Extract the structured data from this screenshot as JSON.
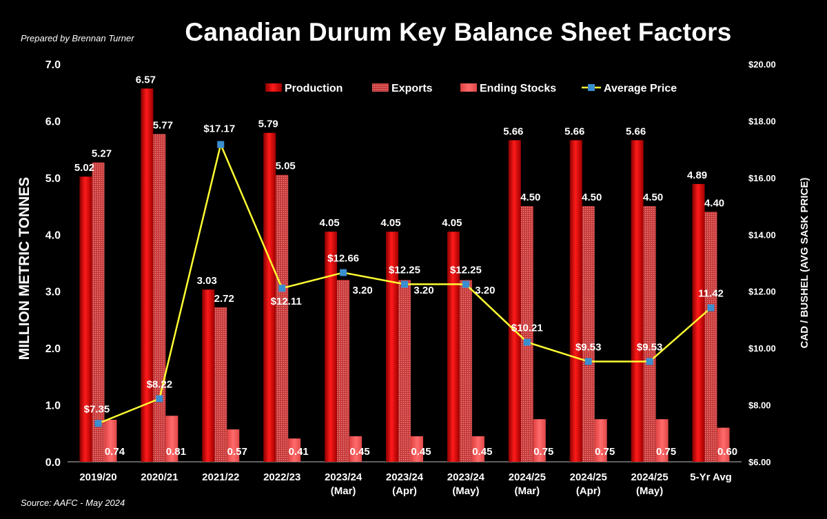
{
  "header": {
    "prepared_by": "Prepared by Brennan Turner",
    "title": "Canadian Durum Key Balance Sheet Factors",
    "source": "Source: AAFC - May 2024"
  },
  "colors": {
    "background": "#000000",
    "production": "#e60000",
    "exports": "#d94545",
    "ending_stocks": "#ff5a5a",
    "price_line": "#ffff33",
    "price_marker": "#3a8fd0"
  },
  "chart_data": {
    "type": "bar",
    "title": "Canadian Durum Key Balance Sheet Factors",
    "ylabel": "MILLION METRIC TONNES",
    "y2label": "CAD / BUSHEL (AVG SASK PRICE)",
    "ylim": [
      0,
      7
    ],
    "y2lim": [
      6,
      20
    ],
    "yticks": [
      "0.0",
      "1.0",
      "2.0",
      "3.0",
      "4.0",
      "5.0",
      "6.0",
      "7.0"
    ],
    "y2ticks": [
      "$6.00",
      "$8.00",
      "$10.00",
      "$12.00",
      "$14.00",
      "$16.00",
      "$18.00",
      "$20.00"
    ],
    "grid": false,
    "legend_position": "top",
    "categories": [
      [
        "2019/20"
      ],
      [
        "2020/21"
      ],
      [
        "2021/22"
      ],
      [
        "2022/23"
      ],
      [
        "2023/24",
        "(Mar)"
      ],
      [
        "2023/24",
        "(Apr)"
      ],
      [
        "2023/24",
        "(May)"
      ],
      [
        "2024/25",
        "(Mar)"
      ],
      [
        "2024/25",
        "(Apr)"
      ],
      [
        "2024/25",
        "(May)"
      ],
      [
        "5-Yr Avg"
      ]
    ],
    "series": [
      {
        "name": "Production",
        "type": "bar",
        "axis": "left",
        "values": [
          5.02,
          6.57,
          3.03,
          5.79,
          4.05,
          4.05,
          4.05,
          5.66,
          5.66,
          5.66,
          4.89
        ],
        "labels": [
          "5.02",
          "6.57",
          "3.03",
          "5.79",
          "4.05",
          "4.05",
          "4.05",
          "5.66",
          "5.66",
          "5.66",
          "4.89"
        ]
      },
      {
        "name": "Exports",
        "type": "bar",
        "axis": "left",
        "values": [
          5.27,
          5.77,
          2.72,
          5.05,
          3.2,
          3.2,
          3.2,
          4.5,
          4.5,
          4.5,
          4.4
        ],
        "labels": [
          "5.27",
          "5.77",
          "2.72",
          "5.05",
          "3.20",
          "3.20",
          "3.20",
          "4.50",
          "4.50",
          "4.50",
          "4.40"
        ]
      },
      {
        "name": "Ending Stocks",
        "type": "bar",
        "axis": "left",
        "values": [
          0.74,
          0.81,
          0.57,
          0.41,
          0.45,
          0.45,
          0.45,
          0.75,
          0.75,
          0.75,
          0.6
        ],
        "labels": [
          "0.74",
          "0.81",
          "0.57",
          "0.41",
          "0.45",
          "0.45",
          "0.45",
          "0.75",
          "0.75",
          "0.75",
          "0.60"
        ]
      },
      {
        "name": "Average Price",
        "type": "line",
        "axis": "right",
        "values": [
          7.35,
          8.22,
          17.17,
          12.11,
          12.66,
          12.25,
          12.25,
          10.21,
          9.53,
          9.53,
          11.42
        ],
        "labels": [
          "$7.35",
          "$8.22",
          "$17.17",
          "$12.11",
          "$12.66",
          "$12.25",
          "$12.25",
          "$10.21",
          "$9.53",
          "$9.53",
          "11.42"
        ]
      }
    ]
  }
}
